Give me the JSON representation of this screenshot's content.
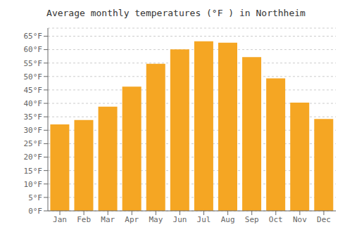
{
  "chart_data": {
    "type": "bar",
    "title": "Average monthly temperatures (°F ) in Northheim",
    "categories": [
      "Jan",
      "Feb",
      "Mar",
      "Apr",
      "May",
      "Jun",
      "Jul",
      "Aug",
      "Sep",
      "Oct",
      "Nov",
      "Dec"
    ],
    "values": [
      32.2,
      33.8,
      38.8,
      46.2,
      54.7,
      60.1,
      63.1,
      62.6,
      57.2,
      49.3,
      40.3,
      34.2
    ],
    "color": "#F5A623",
    "ylim": [
      0,
      68
    ],
    "yticks": [
      {
        "value": 0,
        "label": "0°F"
      },
      {
        "value": 5,
        "label": "5°F"
      },
      {
        "value": 10,
        "label": "10°F"
      },
      {
        "value": 15,
        "label": "15°F"
      },
      {
        "value": 20,
        "label": "20°F"
      },
      {
        "value": 25,
        "label": "25°F"
      },
      {
        "value": 30,
        "label": "30°F"
      },
      {
        "value": 35,
        "label": "35°F"
      },
      {
        "value": 40,
        "label": "40°F"
      },
      {
        "value": 45,
        "label": "45°F"
      },
      {
        "value": 50,
        "label": "50°F"
      },
      {
        "value": 55,
        "label": "55°F"
      },
      {
        "value": 60,
        "label": "60°F"
      },
      {
        "value": 65,
        "label": "65°F"
      }
    ],
    "grid": true
  }
}
